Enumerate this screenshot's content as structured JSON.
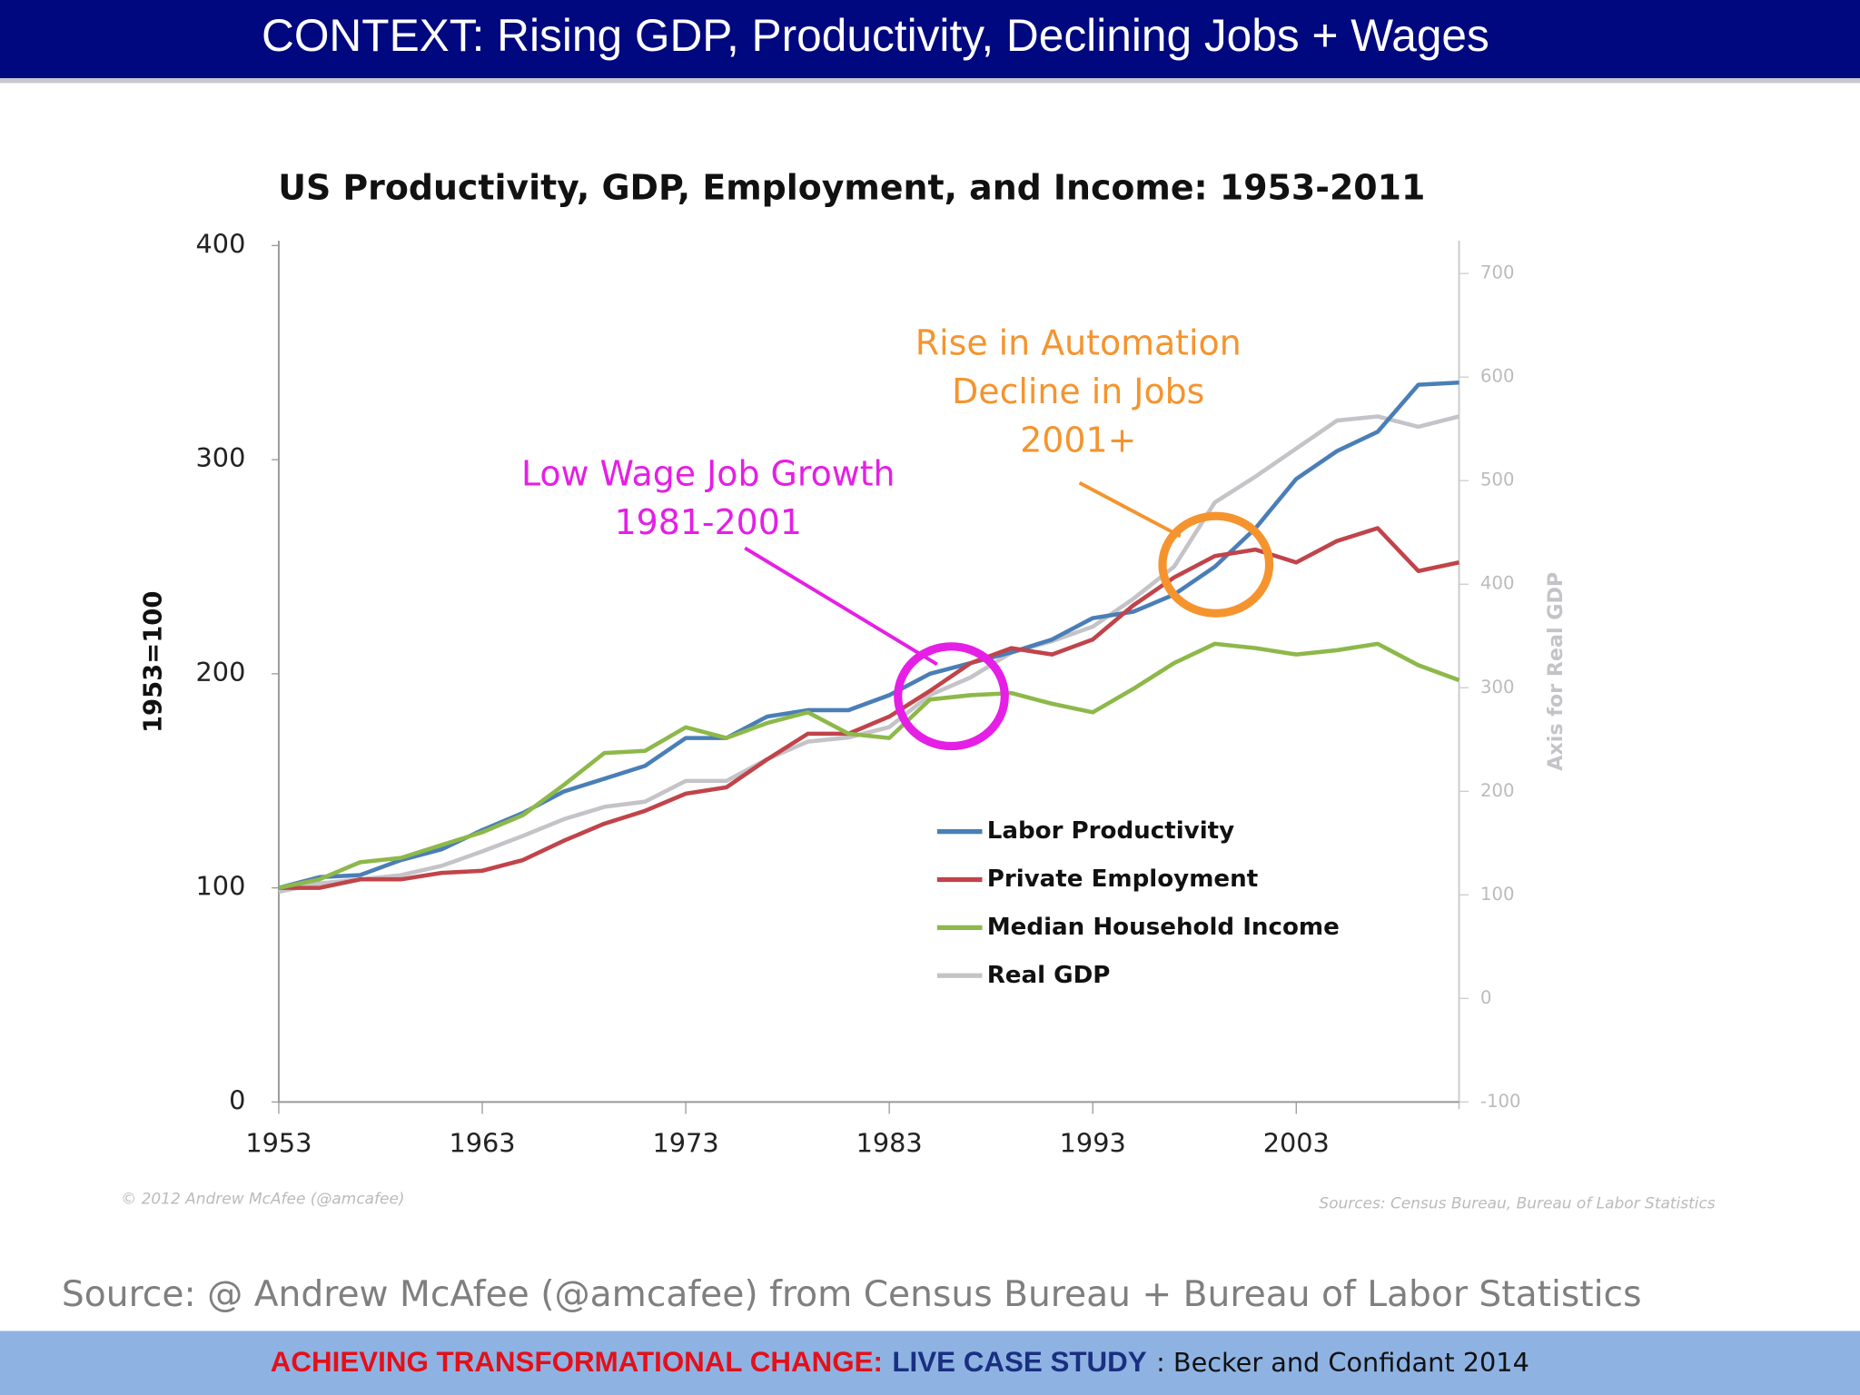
{
  "header": {
    "title": "CONTEXT: Rising GDP, Productivity, Declining Jobs + Wages"
  },
  "chart_data": {
    "type": "line",
    "title": "US Productivity, GDP, Employment, and Income: 1953-2011",
    "y_label": "1953=100",
    "y2_label": "Axis for Real GDP",
    "x": [
      1953,
      1955,
      1957,
      1959,
      1961,
      1963,
      1965,
      1967,
      1969,
      1971,
      1973,
      1975,
      1977,
      1979,
      1981,
      1983,
      1985,
      1987,
      1989,
      1991,
      1993,
      1995,
      1997,
      1999,
      2001,
      2003,
      2005,
      2007,
      2009,
      2011
    ],
    "series": [
      {
        "name": "Labor Productivity",
        "color": "#4a7eb7",
        "values": [
          100,
          105,
          106,
          113,
          118,
          127,
          135,
          145,
          151,
          157,
          170,
          170,
          180,
          183,
          183,
          190,
          200,
          205,
          210,
          216,
          226,
          229,
          237,
          250,
          268,
          291,
          304,
          313,
          335,
          336
        ]
      },
      {
        "name": "Private Employment",
        "color": "#c0444a",
        "values": [
          100,
          100,
          104,
          104,
          107,
          108,
          113,
          122,
          130,
          136,
          144,
          147,
          160,
          172,
          172,
          180,
          192,
          205,
          212,
          209,
          216,
          232,
          245,
          255,
          258,
          252,
          262,
          268,
          248,
          252
        ]
      },
      {
        "name": "Median Household Income",
        "color": "#8db84a",
        "values": [
          100,
          104,
          112,
          114,
          120,
          126,
          134,
          148,
          163,
          164,
          175,
          170,
          177,
          182,
          172,
          170,
          188,
          190,
          191,
          186,
          182,
          193,
          205,
          214,
          212,
          209,
          211,
          214,
          204,
          197
        ]
      },
      {
        "name": "Real GDP",
        "color": "#c4c4c8",
        "axis": "y2",
        "values": [
          103,
          111,
          115,
          119,
          128,
          142,
          157,
          173,
          185,
          190,
          210,
          210,
          231,
          248,
          252,
          262,
          293,
          310,
          334,
          345,
          359,
          386,
          417,
          479,
          504,
          531,
          558,
          562,
          552,
          562
        ]
      }
    ],
    "xlim": [
      1953,
      2011
    ],
    "xticks": [
      1953,
      1963,
      1973,
      1983,
      1993,
      2003
    ],
    "ylim": [
      0,
      400
    ],
    "yticks": [
      0,
      100,
      200,
      300,
      400
    ],
    "y2lim": [
      -100,
      727
    ],
    "y2ticks": [
      -100,
      0,
      100,
      200,
      300,
      400,
      500,
      600,
      700
    ],
    "legend": "lower right",
    "annotations": [
      {
        "lines": [
          "Low Wage Job Growth",
          "1981-2001"
        ],
        "color": "#e51fe5"
      },
      {
        "lines": [
          "Rise in Automation",
          "Decline in Jobs",
          "2001+"
        ],
        "color": "#f5942e"
      }
    ],
    "credit": "© 2012 Andrew McAfee  (@amcafee)",
    "sources": "Sources: Census Bureau, Bureau of Labor Statistics"
  },
  "source": "Source: @ Andrew McAfee (@amcafee) from Census Bureau + Bureau of Labor Statistics",
  "footer": {
    "part1": "ACHIEVING TRANSFORMATIONAL CHANGE:",
    "part2": "LIVE CASE STUDY",
    "part3": ": Becker and Confidant 2014"
  }
}
